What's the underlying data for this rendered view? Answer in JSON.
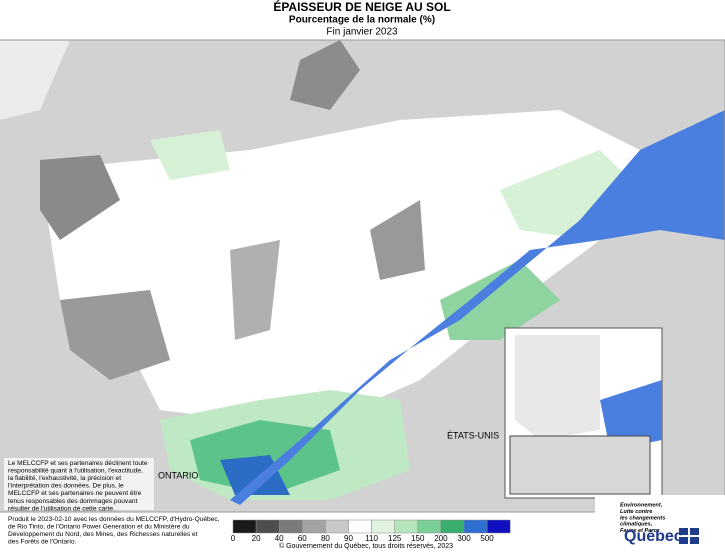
{
  "header": {
    "title": "ÉPAISSEUR DE NEIGE AU SOL",
    "subtitle": "Pourcentage de la normale (%)",
    "period": "Fin janvier 2023"
  },
  "map": {
    "labels": [
      "ONTARIO",
      "ÉTATS-UNIS"
    ],
    "disclaimer": [
      "Le MELCCFP et ses partenaires déclinent toute",
      "responsabilité quant à l'utilisation, l'exactitude,",
      "la fiabilité, l'exhaustivité, la précision et",
      "l'interprétation des données. De plus, le",
      "MELCCFP et ses partenaires ne peuvent être",
      "tenus responsables des dommages pouvant",
      "résulter de l'utilisation de cette carte."
    ]
  },
  "legend": {
    "labels": [
      0,
      20,
      40,
      60,
      80,
      90,
      110,
      125,
      150,
      200,
      300,
      500
    ]
  },
  "footer": {
    "credits": [
      "Produit le 2023-02-10 avec les données du MELCCFP, d'Hydro-Québec,",
      "de Rio Tinto, de l'Ontario Power Generation et du Ministère du",
      "Développement du Nord, des Mines, des Richesses naturelles et",
      "des Forêts de l'Ontario."
    ],
    "copyright": "© Gouvernement du Québec, tous droits réservés, 2023",
    "ministry": [
      "Environnement,",
      "Lutte contre",
      "les changements",
      "climatiques,",
      "Faune et Parcs"
    ],
    "logo": "Québec"
  }
}
